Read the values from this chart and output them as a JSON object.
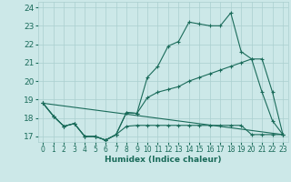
{
  "title": "",
  "xlabel": "Humidex (Indice chaleur)",
  "xlim": [
    -0.5,
    23.5
  ],
  "ylim": [
    16.7,
    24.3
  ],
  "yticks": [
    17,
    18,
    19,
    20,
    21,
    22,
    23,
    24
  ],
  "xticks": [
    0,
    1,
    2,
    3,
    4,
    5,
    6,
    7,
    8,
    9,
    10,
    11,
    12,
    13,
    14,
    15,
    16,
    17,
    18,
    19,
    20,
    21,
    22,
    23
  ],
  "bg_color": "#cce8e8",
  "grid_color": "#aacfcf",
  "line_color": "#1a6b5a",
  "line1_x": [
    0,
    1,
    2,
    3,
    4,
    5,
    6,
    7,
    8,
    9,
    10,
    11,
    12,
    13,
    14,
    15,
    16,
    17,
    18,
    19,
    20,
    21,
    22,
    23
  ],
  "line1_y": [
    18.8,
    18.1,
    17.55,
    17.7,
    17.0,
    17.0,
    16.8,
    17.1,
    18.3,
    18.25,
    20.2,
    20.8,
    21.9,
    22.15,
    23.2,
    23.1,
    23.0,
    23.0,
    23.7,
    21.6,
    21.2,
    19.4,
    17.85,
    17.1
  ],
  "line2_x": [
    0,
    1,
    2,
    3,
    4,
    5,
    6,
    7,
    8,
    9,
    10,
    11,
    12,
    13,
    14,
    15,
    16,
    17,
    18,
    19,
    20,
    21,
    22,
    23
  ],
  "line2_y": [
    18.8,
    18.1,
    17.55,
    17.7,
    17.0,
    17.0,
    16.8,
    17.1,
    18.3,
    18.25,
    19.1,
    19.4,
    19.55,
    19.7,
    20.0,
    20.2,
    20.4,
    20.6,
    20.8,
    21.0,
    21.2,
    21.2,
    19.4,
    17.1
  ],
  "line3_x": [
    0,
    23
  ],
  "line3_y": [
    18.8,
    17.1
  ],
  "line4_x": [
    0,
    1,
    2,
    3,
    4,
    5,
    6,
    7,
    8,
    9,
    10,
    11,
    12,
    13,
    14,
    15,
    16,
    17,
    18,
    19,
    20,
    21,
    22,
    23
  ],
  "line4_y": [
    18.8,
    18.1,
    17.55,
    17.7,
    17.0,
    17.0,
    16.8,
    17.1,
    17.55,
    17.6,
    17.6,
    17.6,
    17.6,
    17.6,
    17.6,
    17.6,
    17.6,
    17.6,
    17.6,
    17.6,
    17.1,
    17.1,
    17.1,
    17.1
  ],
  "tick_fontsize": 5.5,
  "xlabel_fontsize": 6.5,
  "marker_size": 3,
  "linewidth": 0.8
}
